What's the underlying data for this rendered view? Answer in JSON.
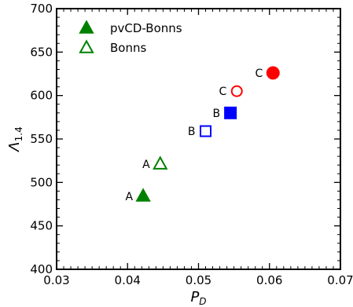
{
  "chart_data": {
    "type": "scatter",
    "xlabel": {
      "main": "P",
      "sub": "D"
    },
    "ylabel": {
      "main": "Λ",
      "sub": "1.4"
    },
    "xlim": [
      0.03,
      0.07
    ],
    "ylim": [
      400,
      700
    ],
    "x_ticks": [
      0.03,
      0.04,
      0.05,
      0.06,
      0.07
    ],
    "x_tick_labels": [
      "0.03",
      "0.04",
      "0.05",
      "0.06",
      "0.07"
    ],
    "y_ticks": [
      400,
      450,
      500,
      550,
      600,
      650,
      700
    ],
    "y_tick_labels": [
      "400",
      "450",
      "500",
      "550",
      "600",
      "650",
      "700"
    ],
    "grid": false,
    "legend": {
      "placement": "top-left",
      "entries": [
        {
          "label": "pvCD-Bonns",
          "marker": "triangle",
          "filled": true,
          "color": "#008000"
        },
        {
          "label": "Bonns",
          "marker": "triangle",
          "filled": false,
          "color": "#008000"
        }
      ]
    },
    "points": [
      {
        "x": 0.0422,
        "y": 484,
        "label": "A",
        "marker": "triangle",
        "filled": true,
        "color": "#008000"
      },
      {
        "x": 0.0446,
        "y": 521,
        "label": "A",
        "marker": "triangle",
        "filled": false,
        "color": "#008000"
      },
      {
        "x": 0.0545,
        "y": 580,
        "label": "B",
        "marker": "square",
        "filled": true,
        "color": "#0000ff"
      },
      {
        "x": 0.051,
        "y": 559,
        "label": "B",
        "marker": "square",
        "filled": false,
        "color": "#0000ff"
      },
      {
        "x": 0.0605,
        "y": 626,
        "label": "C",
        "marker": "circle",
        "filled": true,
        "color": "#ff0000"
      },
      {
        "x": 0.0554,
        "y": 605,
        "label": "C",
        "marker": "circle",
        "filled": false,
        "color": "#ff0000"
      }
    ]
  }
}
